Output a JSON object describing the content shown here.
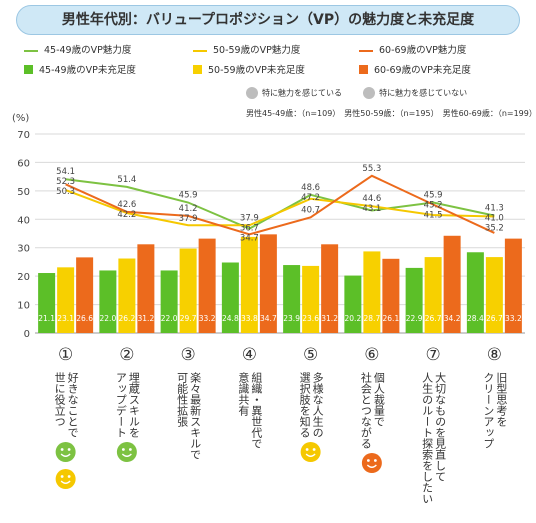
{
  "title": "男性年代別：バリュープロポジション（VP）の魅力度と未充足度",
  "legend": {
    "lines": [
      {
        "label": "45-49歳のVP魅力度",
        "color": "#7dc242"
      },
      {
        "label": "50-59歳のVP魅力度",
        "color": "#f5c800"
      },
      {
        "label": "60-69歳のVP魅力度",
        "color": "#ec6a1c"
      }
    ],
    "bars": [
      {
        "label": "45-49歳のVP未充足度",
        "color": "#5cbf28"
      },
      {
        "label": "50-59歳のVP未充足度",
        "color": "#f7d000"
      },
      {
        "label": "60-69歳のVP未充足度",
        "color": "#ec6a1c"
      }
    ]
  },
  "face_legend": {
    "happy": "特に魅力を感じている",
    "sad": "特に魅力を感じていない"
  },
  "samples": "男性45-49歳：（n=109）　男性50-59歳：（n=195）　男性60-69歳：（n=199）",
  "chart_data": {
    "type": "bar",
    "ylabel": "(%)",
    "ylim": [
      0,
      70
    ],
    "yticks": [
      0,
      10,
      20,
      30,
      40,
      50,
      60,
      70
    ],
    "grid": true,
    "categories": [
      {
        "num": "①",
        "label": [
          "好きなことで",
          "世に役立つ"
        ],
        "faces": [
          "green",
          "yellow"
        ]
      },
      {
        "num": "②",
        "label": [
          "埋蔵スキルを",
          "アップデート"
        ],
        "faces": [
          "green"
        ]
      },
      {
        "num": "③",
        "label": [
          "楽々最新スキルで",
          "可能性拡張"
        ],
        "faces": []
      },
      {
        "num": "④",
        "label": [
          "組織・異世代で",
          "意識共有"
        ],
        "faces": []
      },
      {
        "num": "⑤",
        "label": [
          "多様な人生の",
          "選択肢を知る"
        ],
        "faces": [
          "yellow"
        ]
      },
      {
        "num": "⑥",
        "label": [
          "個人裁量で",
          "社会とつながる"
        ],
        "faces": [
          "orange"
        ]
      },
      {
        "num": "⑦",
        "label": [
          "大切なものを見直して",
          "人生のルート探索をしたい"
        ],
        "faces": []
      },
      {
        "num": "⑧",
        "label": [
          "旧型思考を",
          "クリーンアップ"
        ],
        "faces": []
      }
    ],
    "bar_series": [
      {
        "name": "45-49歳のVP未充足度",
        "color": "#5cbf28",
        "values": [
          21.1,
          22.0,
          22.0,
          24.8,
          23.9,
          20.2,
          22.9,
          28.4
        ]
      },
      {
        "name": "50-59歳のVP未充足度",
        "color": "#f7d000",
        "values": [
          23.1,
          26.2,
          29.7,
          33.8,
          23.6,
          28.7,
          26.7,
          26.7
        ]
      },
      {
        "name": "60-69歳のVP未充足度",
        "color": "#ec6a1c",
        "values": [
          26.6,
          31.2,
          33.2,
          34.7,
          31.2,
          26.1,
          34.2,
          33.2
        ]
      }
    ],
    "line_series": [
      {
        "name": "45-49歳のVP魅力度",
        "color": "#7dc242",
        "values": [
          54.1,
          51.4,
          45.9,
          36.7,
          48.6,
          43.1,
          45.9,
          41.3
        ]
      },
      {
        "name": "50-59歳のVP魅力度",
        "color": "#f5c800",
        "values": [
          50.3,
          42.2,
          37.9,
          37.9,
          47.2,
          44.6,
          41.5,
          41.0
        ]
      },
      {
        "name": "60-69歳のVP魅力度",
        "color": "#ec6a1c",
        "values": [
          52.3,
          42.6,
          41.2,
          34.7,
          40.7,
          55.3,
          45.2,
          35.2
        ]
      }
    ]
  }
}
